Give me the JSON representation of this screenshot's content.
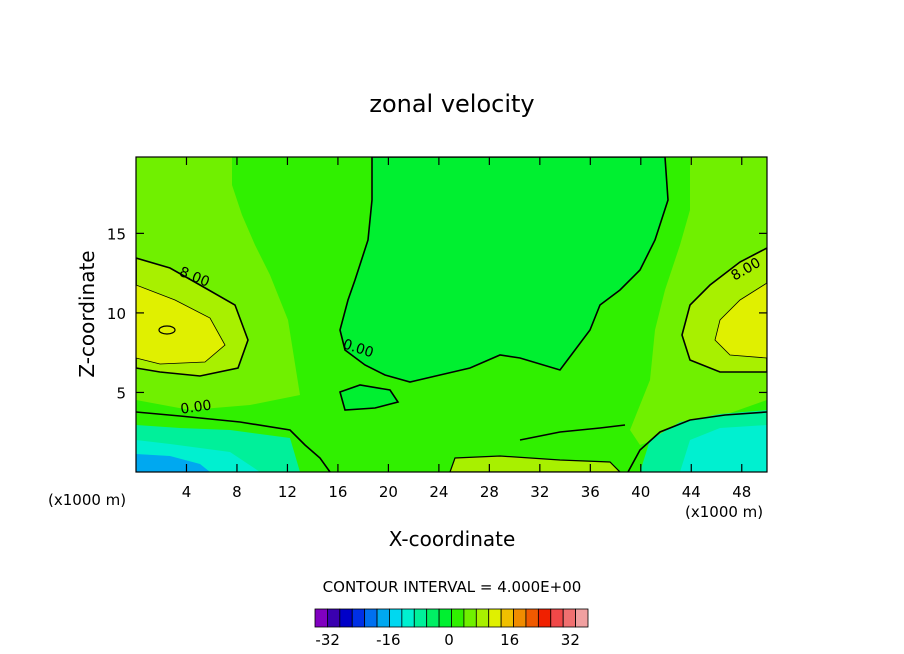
{
  "chart_data": {
    "type": "heatmap",
    "title": "zonal velocity",
    "xlabel": "X-coordinate",
    "ylabel": "Z-coordinate",
    "x_unit_label": "(x1000 m)",
    "z_unit_label": "(x1000 m)",
    "xlim": [
      0,
      50
    ],
    "ylim": [
      0,
      19.8
    ],
    "x_ticks": [
      "4",
      "8",
      "12",
      "16",
      "20",
      "24",
      "28",
      "32",
      "36",
      "40",
      "44",
      "48"
    ],
    "y_ticks": [
      "5",
      "10",
      "15"
    ],
    "contour_labels": [
      {
        "text": "8.00",
        "x": 4.5,
        "z": 12.0
      },
      {
        "text": "8.00",
        "x": 48.5,
        "z": 12.5
      },
      {
        "text": "0.00",
        "x": 17.5,
        "z": 7.5
      },
      {
        "text": "0.00",
        "x": 4.8,
        "z": 3.8
      }
    ],
    "contour_interval_text": "CONTOUR INTERVAL = 4.000E+00",
    "colorbar": {
      "min": -36,
      "max": 36,
      "step": 4,
      "tick_labels": [
        "-32",
        "-16",
        "0",
        "16",
        "32"
      ],
      "tick_values": [
        -32,
        -16,
        0,
        16,
        32
      ],
      "colors": [
        "#8000c0",
        "#3a00b0",
        "#0000c8",
        "#0030e6",
        "#0070f0",
        "#00a8f0",
        "#00d8f0",
        "#00f0d0",
        "#00f09a",
        "#00f064",
        "#00f030",
        "#30f000",
        "#70f000",
        "#a8f000",
        "#e0f000",
        "#f0c000",
        "#f08c00",
        "#f05a00",
        "#f02000",
        "#f04848",
        "#f07070",
        "#f0a0a0"
      ]
    },
    "regions": [
      {
        "name": "background",
        "value": 4
      },
      {
        "name": "central-low",
        "value": 0
      },
      {
        "name": "left-jet",
        "value": 10
      },
      {
        "name": "left-jet-core",
        "value": 12
      },
      {
        "name": "right-jet",
        "value": 10
      },
      {
        "name": "right-jet-core",
        "value": 12
      },
      {
        "name": "bottom-left-negative",
        "value": -8
      },
      {
        "name": "bottom-right-negative",
        "value": -8
      }
    ]
  }
}
